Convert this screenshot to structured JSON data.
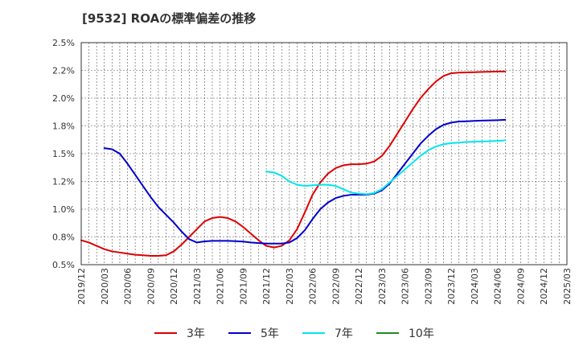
{
  "chart_data": {
    "type": "line",
    "title": "[9532]  ROAの標準偏差の推移",
    "xlabel": "",
    "ylabel": "",
    "ylim": [
      0.5,
      2.5
    ],
    "grid": true,
    "legend_position": "bottom",
    "y_ticks": [
      0.5,
      0.75,
      1.0,
      1.25,
      1.5,
      1.75,
      2.0,
      2.25,
      2.5
    ],
    "y_tick_labels": [
      "0.5%",
      "0.8%",
      "1.0%",
      "1.2%",
      "1.5%",
      "1.8%",
      "2.0%",
      "2.2%",
      "2.5%"
    ],
    "x_tick_labels": [
      "2019/12",
      "2020/03",
      "2020/06",
      "2020/09",
      "2020/12",
      "2021/03",
      "2021/06",
      "2021/09",
      "2021/12",
      "2022/03",
      "2022/06",
      "2022/09",
      "2022/12",
      "2023/03",
      "2023/06",
      "2023/09",
      "2023/12",
      "2024/03",
      "2024/06",
      "2024/09",
      "2024/12",
      "2025/03"
    ],
    "series": [
      {
        "name": "3年",
        "color": "#dd0000",
        "x": [
          0,
          1,
          2,
          3,
          4,
          5,
          6,
          7,
          8,
          9,
          10,
          11,
          12,
          13,
          14,
          15,
          16,
          17,
          18,
          19,
          20,
          21,
          22,
          23,
          24,
          25,
          26,
          27,
          28,
          29,
          30,
          31,
          32,
          33,
          34,
          35,
          36,
          37,
          38,
          39,
          40,
          41,
          42,
          43,
          44,
          45,
          46,
          47,
          48,
          49,
          50,
          51,
          52,
          53,
          54,
          55,
          56,
          57,
          58,
          59,
          60
        ],
        "values": [
          0.72,
          0.7,
          0.67,
          0.64,
          0.62,
          0.61,
          0.6,
          0.59,
          0.585,
          0.58,
          0.58,
          0.585,
          0.62,
          0.68,
          0.75,
          0.82,
          0.89,
          0.92,
          0.93,
          0.92,
          0.89,
          0.84,
          0.78,
          0.72,
          0.67,
          0.655,
          0.67,
          0.72,
          0.82,
          0.97,
          1.13,
          1.24,
          1.32,
          1.37,
          1.395,
          1.405,
          1.405,
          1.41,
          1.43,
          1.48,
          1.57,
          1.68,
          1.79,
          1.9,
          2.0,
          2.08,
          2.15,
          2.2,
          2.225,
          2.23,
          2.232,
          2.234,
          2.236,
          2.238,
          2.24,
          2.24,
          null,
          null,
          null,
          null,
          null
        ]
      },
      {
        "name": "5年",
        "color": "#0000cc",
        "x": [
          3,
          4,
          5,
          6,
          7,
          8,
          9,
          10,
          11,
          12,
          13,
          14,
          15,
          16,
          17,
          18,
          19,
          20,
          21,
          22,
          23,
          24,
          25,
          26,
          27,
          28,
          29,
          30,
          31,
          32,
          33,
          34,
          35,
          36,
          37,
          38,
          39,
          40,
          41,
          42,
          43,
          44,
          45,
          46,
          47,
          48,
          49,
          50,
          51,
          52,
          53,
          54,
          55
        ],
        "values": [
          1.55,
          1.54,
          1.5,
          1.41,
          1.31,
          1.21,
          1.11,
          1.02,
          0.95,
          0.88,
          0.8,
          0.73,
          0.7,
          0.71,
          0.715,
          0.715,
          0.715,
          0.712,
          0.708,
          0.7,
          0.695,
          0.69,
          0.69,
          0.69,
          0.7,
          0.74,
          0.81,
          0.91,
          1.0,
          1.06,
          1.1,
          1.12,
          1.13,
          1.13,
          1.13,
          1.14,
          1.17,
          1.23,
          1.32,
          1.41,
          1.5,
          1.59,
          1.66,
          1.72,
          1.76,
          1.78,
          1.79,
          1.792,
          1.795,
          1.798,
          1.8,
          1.802,
          1.805
        ]
      },
      {
        "name": "7年",
        "color": "#00e5ee",
        "x": [
          24,
          25,
          26,
          27,
          28,
          29,
          30,
          31,
          32,
          33,
          34,
          35,
          36,
          37,
          38,
          39,
          40,
          41,
          42,
          43,
          44,
          45,
          46,
          47,
          48,
          49,
          50,
          51,
          52,
          53,
          54,
          55
        ],
        "values": [
          1.34,
          1.33,
          1.3,
          1.25,
          1.22,
          1.21,
          1.215,
          1.22,
          1.22,
          1.21,
          1.18,
          1.15,
          1.14,
          1.135,
          1.145,
          1.18,
          1.24,
          1.3,
          1.36,
          1.42,
          1.48,
          1.53,
          1.565,
          1.585,
          1.595,
          1.6,
          1.605,
          1.608,
          1.61,
          1.612,
          1.615,
          1.62
        ]
      },
      {
        "name": "10年",
        "color": "#228b22",
        "x": [],
        "values": []
      }
    ]
  }
}
